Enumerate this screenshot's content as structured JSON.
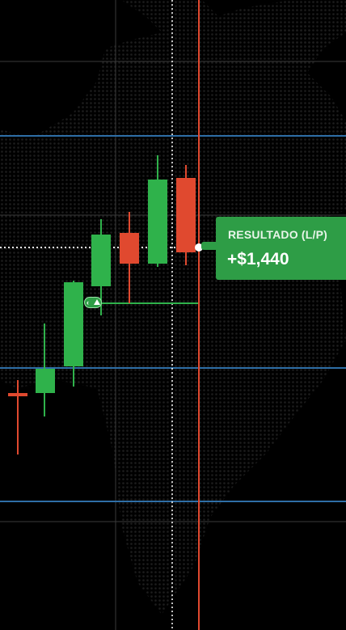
{
  "result": {
    "label": "RESULTADO (L/P)",
    "value": "+$1,440"
  },
  "colors": {
    "background": "#000000",
    "map_dots": "#1e1e1e",
    "grid": "#3a3a3a",
    "level_lines": "#2e6ea6",
    "bullish": "#2fb24b",
    "bearish": "#e0492f",
    "time_line": "#e0492f",
    "result_badge": "#2e9d46"
  },
  "icons": {
    "entry_marker": "up-arrow-icon"
  }
}
